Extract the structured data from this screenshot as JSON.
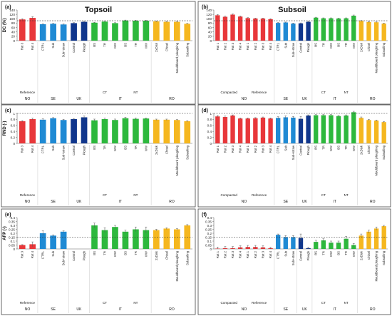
{
  "figure": {
    "top_headers": [
      "Topsoil",
      "Subsoil"
    ]
  },
  "chart_data": [
    {
      "id": "a",
      "type": "bar",
      "label": "(a)",
      "ylabel": "DC (%)",
      "ylim": [
        0,
        140
      ],
      "yticks": [
        0,
        20,
        40,
        60,
        80,
        100,
        120,
        140
      ],
      "ref_line": 91,
      "categories": [
        "Rot 3",
        "Rot 4",
        "CTRL",
        "Sub",
        "Sub+straw",
        "Control",
        "Plough",
        "BS",
        "TR",
        "WW",
        "BS",
        "TR",
        "WW",
        "2xDisk",
        "Chisel",
        "Mouldboard ploughing",
        "Subsoiling"
      ],
      "colors": [
        "#e8373a",
        "#e8373a",
        "#1f8ad4",
        "#1f8ad4",
        "#1f8ad4",
        "#10368c",
        "#10368c",
        "#2db83d",
        "#2db83d",
        "#2db83d",
        "#2db83d",
        "#2db83d",
        "#2db83d",
        "#f5b71f",
        "#f5b71f",
        "#f5b71f",
        "#f5b71f"
      ],
      "values": [
        97,
        104,
        75,
        77,
        74,
        80,
        86,
        82,
        87,
        80,
        92,
        91,
        91,
        88,
        86,
        86,
        77
      ],
      "errors": [
        3,
        5,
        2,
        2,
        2,
        2,
        2,
        2,
        2,
        2,
        2,
        2,
        2,
        2,
        2,
        2,
        2
      ],
      "groups": [
        {
          "label": "NO",
          "from": 0,
          "to": 1,
          "sub": "Reference"
        },
        {
          "label": "SE",
          "from": 2,
          "to": 4
        },
        {
          "label": "UK",
          "from": 5,
          "to": 6
        },
        {
          "label": "IT",
          "from": 7,
          "to": 12
        },
        {
          "label": "RO",
          "from": 13,
          "to": 16
        }
      ],
      "subgroups": [
        {
          "label": "CT",
          "from": 7,
          "to": 9
        },
        {
          "label": "NT",
          "from": 10,
          "to": 12
        }
      ]
    },
    {
      "id": "b",
      "type": "bar",
      "label": "(b)",
      "ylabel": "",
      "ylim": [
        0,
        140
      ],
      "yticks": [
        0,
        20,
        40,
        60,
        80,
        100,
        120,
        140
      ],
      "ref_line": 91,
      "categories": [
        "Rot 1",
        "Rot 2",
        "Rot 3",
        "Rot 4",
        "Rot 1",
        "Rot 2",
        "Rot 3",
        "Rot 4",
        "CTRL",
        "Sub",
        "Sub+straw",
        "Control",
        "Plough",
        "BS",
        "TR",
        "WW",
        "BS",
        "TR",
        "WW",
        "2xDisk",
        "Chisel",
        "Mouldboard ploughing",
        "Subsoiling"
      ],
      "colors": [
        "#e8373a",
        "#e8373a",
        "#e8373a",
        "#e8373a",
        "#e8373a",
        "#e8373a",
        "#e8373a",
        "#e8373a",
        "#1f8ad4",
        "#1f8ad4",
        "#1f8ad4",
        "#10368c",
        "#10368c",
        "#2db83d",
        "#2db83d",
        "#2db83d",
        "#2db83d",
        "#2db83d",
        "#2db83d",
        "#f5b71f",
        "#f5b71f",
        "#f5b71f",
        "#f5b71f"
      ],
      "values": [
        116,
        109,
        119,
        110,
        103,
        101,
        101,
        98,
        81,
        83,
        78,
        79,
        86,
        105,
        102,
        102,
        101,
        102,
        114,
        90,
        85,
        84,
        78
      ],
      "errors": [
        3,
        3,
        3,
        3,
        2,
        2,
        2,
        2,
        2,
        2,
        2,
        2,
        2,
        2,
        2,
        2,
        2,
        2,
        3,
        2,
        2,
        2,
        2
      ],
      "groups": [
        {
          "label": "NO",
          "from": 0,
          "to": 7
        },
        {
          "label": "SE",
          "from": 8,
          "to": 10
        },
        {
          "label": "UK",
          "from": 11,
          "to": 12
        },
        {
          "label": "IT",
          "from": 13,
          "to": 18
        },
        {
          "label": "RO",
          "from": 19,
          "to": 22
        }
      ],
      "subgroups": [
        {
          "label": "Compacted",
          "from": 0,
          "to": 3
        },
        {
          "label": "Reference",
          "from": 4,
          "to": 7
        },
        {
          "label": "CT",
          "from": 13,
          "to": 15
        },
        {
          "label": "NT",
          "from": 16,
          "to": 18
        }
      ]
    },
    {
      "id": "c",
      "type": "bar",
      "label": "(c)",
      "ylabel": "RND (-)",
      "ylim": [
        0,
        1
      ],
      "yticks": [
        0,
        0.2,
        0.4,
        0.6,
        0.8,
        1
      ],
      "ref_line": 1,
      "categories": [
        "Rot 3",
        "Rot 4",
        "CTRL",
        "Sub",
        "Sub+straw",
        "Control",
        "Plough",
        "BS",
        "TR",
        "WW",
        "BS",
        "TR",
        "WW",
        "2xDisk",
        "Chisel",
        "Mouldboard ploughing",
        "Subsoiling"
      ],
      "colors": [
        "#e8373a",
        "#e8373a",
        "#1f8ad4",
        "#1f8ad4",
        "#1f8ad4",
        "#10368c",
        "#10368c",
        "#2db83d",
        "#2db83d",
        "#2db83d",
        "#2db83d",
        "#2db83d",
        "#2db83d",
        "#f5b71f",
        "#f5b71f",
        "#f5b71f",
        "#f5b71f"
      ],
      "values": [
        0.74,
        0.81,
        0.79,
        0.84,
        0.78,
        0.81,
        0.87,
        0.77,
        0.81,
        0.78,
        0.84,
        0.82,
        0.83,
        0.79,
        0.79,
        0.78,
        0.74
      ],
      "errors": [
        0.02,
        0.03,
        0.03,
        0.02,
        0.02,
        0.02,
        0.04,
        0.04,
        0.03,
        0.03,
        0.03,
        0.03,
        0.02,
        0.02,
        0.02,
        0.02,
        0.02
      ],
      "groups": [
        {
          "label": "NO",
          "from": 0,
          "to": 1,
          "sub": "Reference"
        },
        {
          "label": "SE",
          "from": 2,
          "to": 4
        },
        {
          "label": "UK",
          "from": 5,
          "to": 6
        },
        {
          "label": "IT",
          "from": 7,
          "to": 12
        },
        {
          "label": "RO",
          "from": 13,
          "to": 16
        }
      ],
      "subgroups": [
        {
          "label": "CT",
          "from": 7,
          "to": 9
        },
        {
          "label": "NT",
          "from": 10,
          "to": 12
        }
      ]
    },
    {
      "id": "d",
      "type": "bar",
      "label": "(d)",
      "ylabel": "",
      "ylim": [
        0,
        1
      ],
      "yticks": [
        0,
        0.2,
        0.4,
        0.6,
        0.8,
        1
      ],
      "ref_line": 1,
      "categories": [
        "Rot 1",
        "Rot 2",
        "Rot 3",
        "Rot 4",
        "Rot 1",
        "Rot 2",
        "Rot 3",
        "Rot 4",
        "CTRL",
        "Sub",
        "Sub+straw",
        "Control",
        "Plough",
        "BS",
        "TR",
        "WW",
        "BS",
        "TR",
        "WW",
        "2xDisk",
        "Chisel",
        "Mouldboard ploughing",
        "Subsoiling"
      ],
      "colors": [
        "#e8373a",
        "#e8373a",
        "#e8373a",
        "#e8373a",
        "#e8373a",
        "#e8373a",
        "#e8373a",
        "#e8373a",
        "#1f8ad4",
        "#1f8ad4",
        "#1f8ad4",
        "#10368c",
        "#10368c",
        "#2db83d",
        "#2db83d",
        "#2db83d",
        "#2db83d",
        "#2db83d",
        "#2db83d",
        "#f5b71f",
        "#f5b71f",
        "#f5b71f",
        "#f5b71f"
      ],
      "values": [
        0.9,
        0.88,
        0.93,
        0.83,
        0.83,
        0.84,
        0.86,
        0.83,
        0.85,
        0.87,
        0.86,
        0.82,
        0.93,
        0.94,
        0.94,
        0.94,
        0.91,
        0.93,
        1.04,
        0.85,
        0.78,
        0.76,
        0.71
      ],
      "errors": [
        0.03,
        0.03,
        0.02,
        0.02,
        0.02,
        0.02,
        0.02,
        0.02,
        0.04,
        0.05,
        0.04,
        0.08,
        0.02,
        0.02,
        0.02,
        0.02,
        0.02,
        0.02,
        0.03,
        0.03,
        0.02,
        0.02,
        0.02
      ],
      "groups": [
        {
          "label": "NO",
          "from": 0,
          "to": 7
        },
        {
          "label": "SE",
          "from": 8,
          "to": 10
        },
        {
          "label": "UK",
          "from": 11,
          "to": 12
        },
        {
          "label": "IT",
          "from": 13,
          "to": 18
        },
        {
          "label": "RO",
          "from": 19,
          "to": 22
        }
      ],
      "subgroups": [
        {
          "label": "Compacted",
          "from": 0,
          "to": 3
        },
        {
          "label": "Reference",
          "from": 4,
          "to": 7
        },
        {
          "label": "CT",
          "from": 13,
          "to": 15
        },
        {
          "label": "NT",
          "from": 16,
          "to": 18
        }
      ]
    },
    {
      "id": "e",
      "type": "bar",
      "label": "(e)",
      "ylabel": "AFP (-)",
      "ylim": [
        0,
        0.4
      ],
      "yticks": [
        0,
        0.05,
        0.1,
        0.15,
        0.2,
        0.25,
        0.3,
        0.35,
        0.4
      ],
      "ref_line": 0.15,
      "categories": [
        "Rot 3",
        "Rot 4",
        "CTRL",
        "Sub",
        "Sub+straw",
        "Control",
        "Plough",
        "BS",
        "TR",
        "WW",
        "BS",
        "TR",
        "WW",
        "2xDisk",
        "Chisel",
        "Mouldboard ploughing",
        "Subsoiling"
      ],
      "colors": [
        "#e8373a",
        "#e8373a",
        "#1f8ad4",
        "#1f8ad4",
        "#1f8ad4",
        "#10368c",
        "#10368c",
        "#2db83d",
        "#2db83d",
        "#2db83d",
        "#2db83d",
        "#2db83d",
        "#2db83d",
        "#f5b71f",
        "#f5b71f",
        "#f5b71f",
        "#f5b71f"
      ],
      "values": [
        0.05,
        0.06,
        0.2,
        0.17,
        0.22,
        0,
        0,
        0.3,
        0.24,
        0.28,
        0.22,
        0.25,
        0.24,
        0.24,
        0.26,
        0.25,
        0.3
      ],
      "errors": [
        0.005,
        0.03,
        0.03,
        0.01,
        0.01,
        0,
        0,
        0.03,
        0.03,
        0.02,
        0.02,
        0.03,
        0.04,
        0.01,
        0.01,
        0.01,
        0.01
      ],
      "groups": [
        {
          "label": "NO",
          "from": 0,
          "to": 1,
          "sub": "Reference"
        },
        {
          "label": "SE",
          "from": 2,
          "to": 4
        },
        {
          "label": "UK",
          "from": 5,
          "to": 6
        },
        {
          "label": "IT",
          "from": 7,
          "to": 12
        },
        {
          "label": "RO",
          "from": 13,
          "to": 16
        }
      ],
      "subgroups": [
        {
          "label": "CT",
          "from": 7,
          "to": 9
        },
        {
          "label": "NT",
          "from": 10,
          "to": 12
        }
      ]
    },
    {
      "id": "f",
      "type": "bar",
      "label": "(f)",
      "ylabel": "",
      "ylim": [
        0,
        0.4
      ],
      "yticks": [
        0,
        0.05,
        0.1,
        0.15,
        0.2,
        0.25,
        0.3,
        0.35,
        0.4
      ],
      "ref_line": 0.15,
      "categories": [
        "Rot 1",
        "Rot 2",
        "Rot 3",
        "Rot 4",
        "Rot 1",
        "Rot 2",
        "Rot 3",
        "Rot 4",
        "CTRL",
        "Sub",
        "Sub+straw",
        "Control",
        "Plough",
        "BS",
        "TR",
        "WW",
        "BS",
        "TR",
        "WW",
        "2xDisk",
        "Chisel",
        "Mouldboard ploughing",
        "Subsoiling"
      ],
      "colors": [
        "#e8373a",
        "#e8373a",
        "#e8373a",
        "#e8373a",
        "#e8373a",
        "#e8373a",
        "#e8373a",
        "#e8373a",
        "#1f8ad4",
        "#1f8ad4",
        "#1f8ad4",
        "#10368c",
        "#10368c",
        "#2db83d",
        "#2db83d",
        "#2db83d",
        "#2db83d",
        "#2db83d",
        "#2db83d",
        "#f5b71f",
        "#f5b71f",
        "#f5b71f",
        "#f5b71f"
      ],
      "values": [
        0.005,
        0.01,
        0.01,
        0.02,
        0.025,
        0.025,
        0.02,
        0.01,
        0.18,
        0.15,
        0.15,
        0.14,
        0.01,
        0.09,
        0.11,
        0.08,
        0.08,
        0.13,
        0.05,
        0.17,
        0.22,
        0.26,
        0.29
      ],
      "errors": [
        0.02,
        0.02,
        0.02,
        0.02,
        0.02,
        0.02,
        0.02,
        0.01,
        0.01,
        0.02,
        0.02,
        0.05,
        0.01,
        0.02,
        0.02,
        0.02,
        0.02,
        0.03,
        0.02,
        0.02,
        0.02,
        0.02,
        0.01
      ],
      "groups": [
        {
          "label": "NO",
          "from": 0,
          "to": 7
        },
        {
          "label": "SE",
          "from": 8,
          "to": 10
        },
        {
          "label": "UK",
          "from": 11,
          "to": 12
        },
        {
          "label": "IT",
          "from": 13,
          "to": 18
        },
        {
          "label": "RO",
          "from": 19,
          "to": 22
        }
      ],
      "subgroups": [
        {
          "label": "Compacted",
          "from": 0,
          "to": 3
        },
        {
          "label": "Reference",
          "from": 4,
          "to": 7
        },
        {
          "label": "CT",
          "from": 13,
          "to": 15
        },
        {
          "label": "NT",
          "from": 16,
          "to": 18
        }
      ]
    }
  ]
}
